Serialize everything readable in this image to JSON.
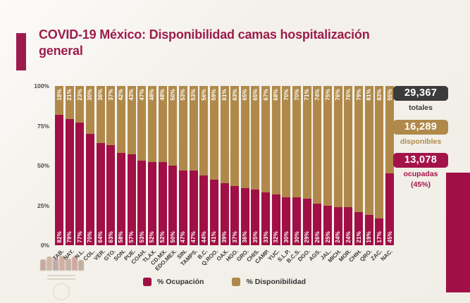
{
  "title": "COVID-19 México: Disponibilidad camas hospitalización general",
  "colors": {
    "occupation": "#a00f45",
    "availability": "#b0894a",
    "title_accent": "#9d1c4d",
    "badge_total": "#3b3b3b",
    "badge_available": "#b0894a",
    "badge_occupied": "#a31349"
  },
  "chart_data": {
    "type": "bar",
    "stacked": true,
    "title": "COVID-19 México: Disponibilidad camas hospitalización general",
    "ylim": [
      0,
      100
    ],
    "y_ticks": [
      "100%",
      "75%",
      "50%",
      "25%",
      "0%"
    ],
    "grid": false,
    "legend_position": "bottom",
    "value_suffix": "%",
    "categories": [
      "TAB.",
      "NAY.",
      "N.L.",
      "COL.",
      "VER.",
      "GTO.",
      "SON.",
      "PUE.",
      "COAH.",
      "TLAX.",
      "CD.MX.",
      "EDO.MEX.",
      "SIN.",
      "TAMPS.",
      "B.C.",
      "Q.ROO.",
      "OAX.",
      "HGO.",
      "GRO.",
      "CHIS.",
      "CAMP.",
      "YUC.",
      "S.L.P.",
      "B.C.S.",
      "DGO.",
      "AGS.",
      "JAL.",
      "MICH.",
      "MOR.",
      "CHIH.",
      "QRO.",
      "ZAC.",
      "NAC."
    ],
    "series": [
      {
        "name": "% Ocupación",
        "color": "#a00f45",
        "values": [
          82,
          79,
          77,
          70,
          64,
          63,
          58,
          57,
          53,
          52,
          52,
          50,
          47,
          47,
          44,
          41,
          39,
          37,
          36,
          35,
          33,
          32,
          30,
          30,
          29,
          26,
          25,
          24,
          24,
          21,
          19,
          17,
          45
        ]
      },
      {
        "name": "% Disponibilidad",
        "color": "#b0894a",
        "values": [
          18,
          21,
          23,
          30,
          36,
          37,
          42,
          43,
          47,
          48,
          48,
          50,
          53,
          53,
          56,
          59,
          61,
          63,
          65,
          65,
          67,
          68,
          70,
          70,
          71,
          74,
          75,
          76,
          76,
          79,
          81,
          83,
          55
        ]
      }
    ]
  },
  "legend": {
    "occupation_label": "% Ocupación",
    "availability_label": "% Disponibilidad"
  },
  "summary": {
    "totales": {
      "value": "29,367",
      "label": "totales"
    },
    "disponibles": {
      "value": "16,289",
      "label": "disponibles"
    },
    "ocupadas": {
      "value": "13,078",
      "label": "ocupadas",
      "sublabel": "(45%)"
    }
  }
}
